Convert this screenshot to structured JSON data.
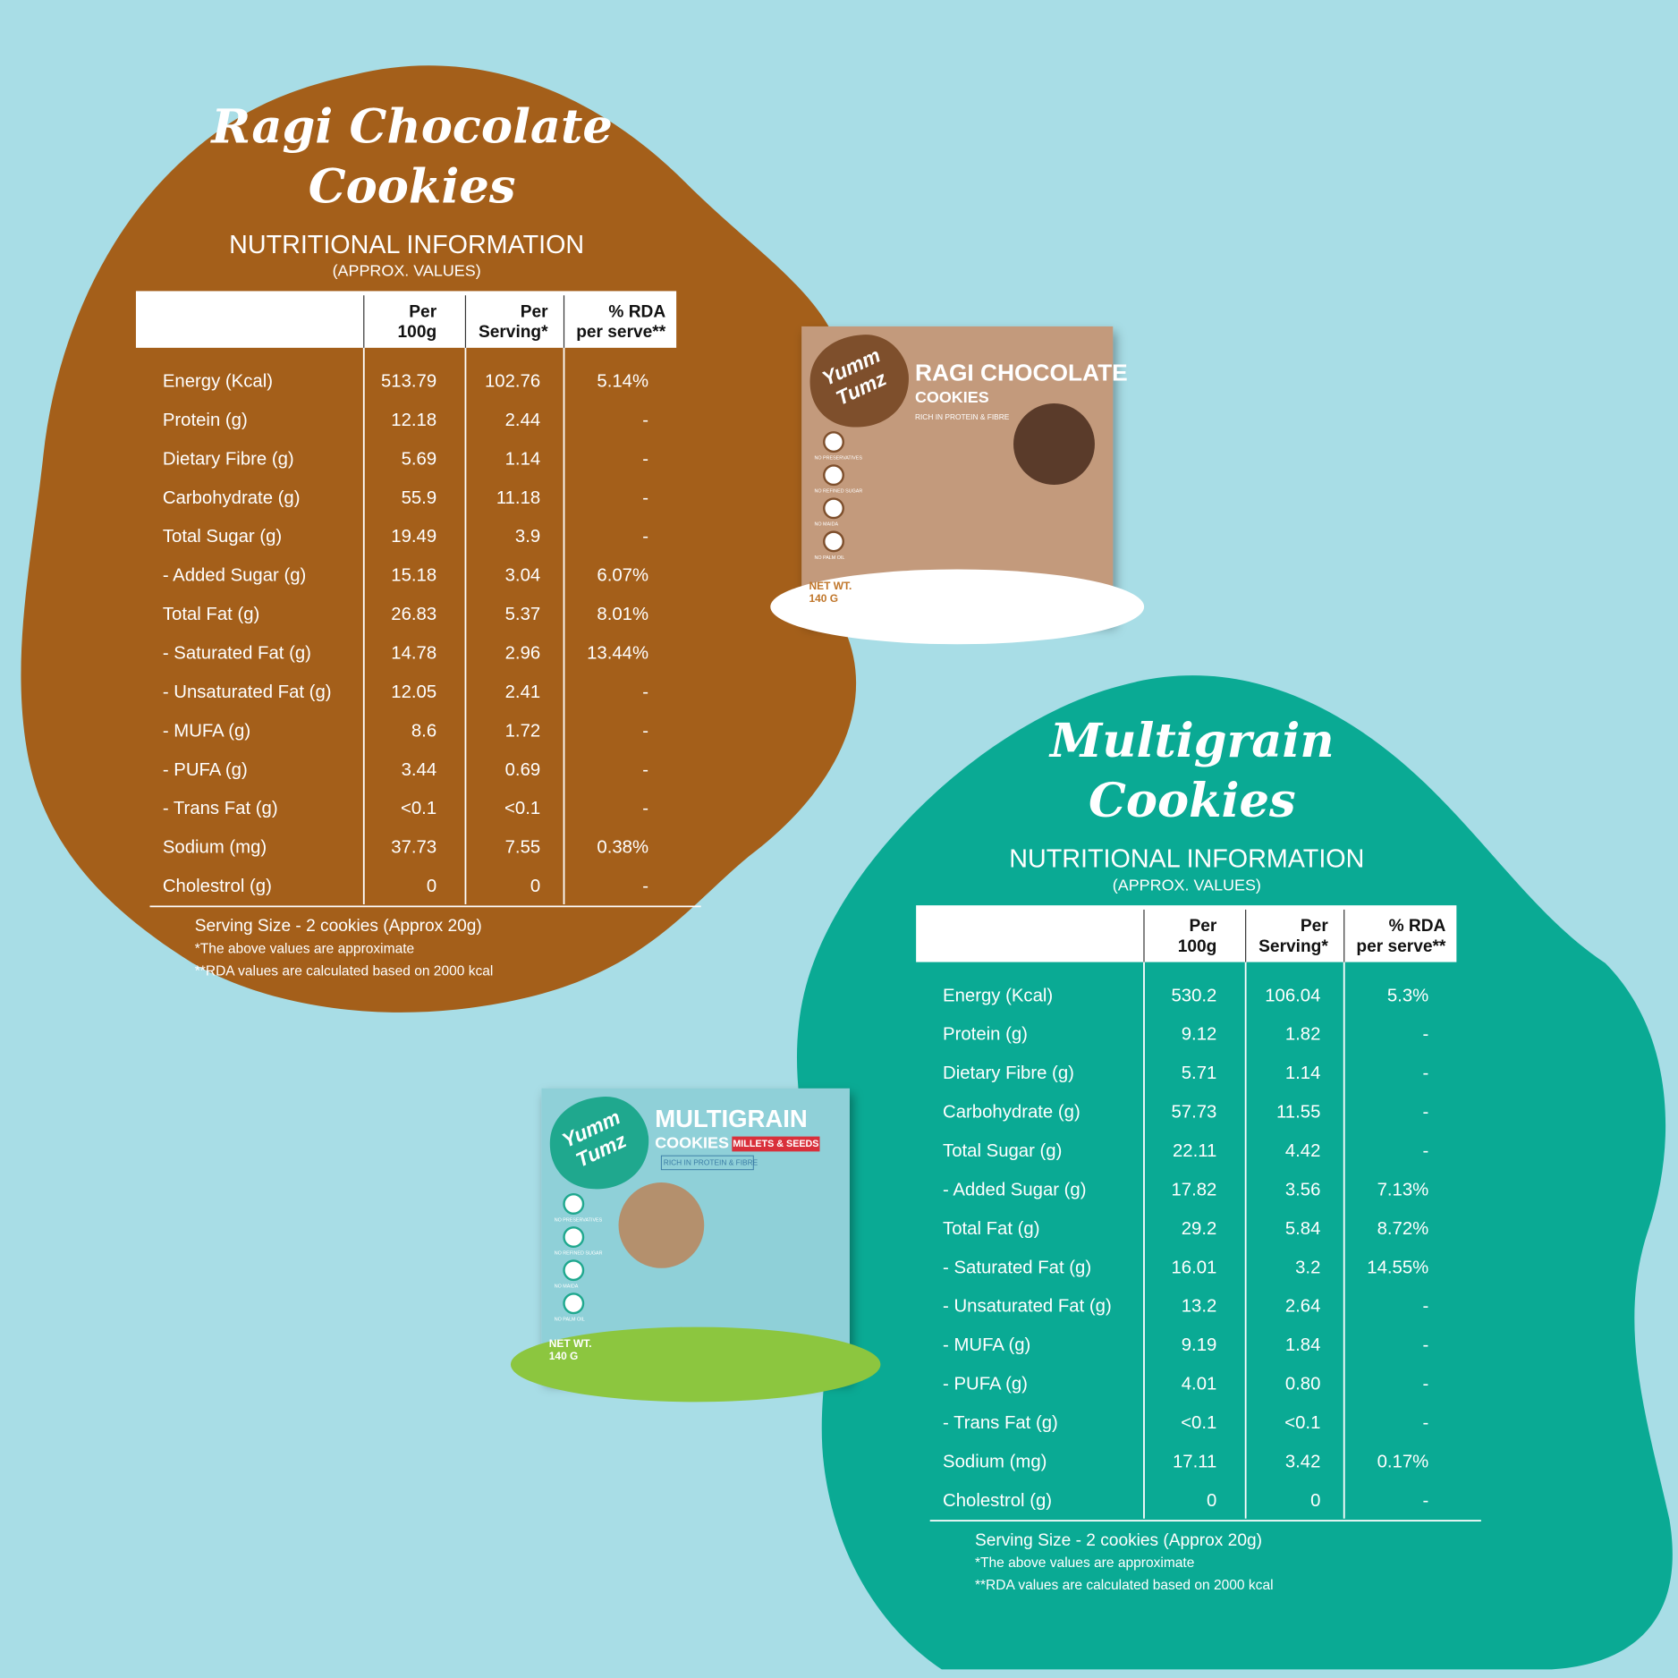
{
  "panels": [
    {
      "title": [
        "Ragi Chocolate",
        "Cookies"
      ],
      "heading": "NUTRITIONAL INFORMATION",
      "subheading": "(APPROX. VALUES)",
      "table": {
        "header": [
          [
            "Per",
            "100g"
          ],
          [
            "Per",
            "Serving*"
          ],
          [
            "% RDA",
            "per serve**"
          ]
        ],
        "rows": [
          [
            "Energy (Kcal)",
            "513.79",
            "102.76",
            "5.14%"
          ],
          [
            "Protein (g)",
            "12.18",
            "2.44",
            "-"
          ],
          [
            "Dietary Fibre (g)",
            "5.69",
            "1.14",
            "-"
          ],
          [
            "Carbohydrate (g)",
            "55.9",
            "11.18",
            "-"
          ],
          [
            "Total Sugar (g)",
            "19.49",
            "3.9",
            "-"
          ],
          [
            " - Added Sugar (g)",
            "15.18",
            "3.04",
            "6.07%"
          ],
          [
            "Total Fat (g)",
            "26.83",
            "5.37",
            "8.01%"
          ],
          [
            " - Saturated Fat (g)",
            "14.78",
            "2.96",
            "13.44%"
          ],
          [
            " - Unsaturated Fat (g)",
            "12.05",
            "2.41",
            "-"
          ],
          [
            " - MUFA (g)",
            "8.6",
            "1.72",
            "-"
          ],
          [
            " - PUFA (g)",
            "3.44",
            "0.69",
            "-"
          ],
          [
            " - Trans Fat (g)",
            "<0.1",
            "<0.1",
            "-"
          ],
          [
            "Sodium (mg)",
            "37.73",
            "7.55",
            "0.38%"
          ],
          [
            "Cholestrol (g)",
            "0",
            "0",
            "-"
          ]
        ]
      },
      "serving_size": "Serving Size - 2 cookies (Approx 20g)",
      "notes": [
        "*The above values are approximate",
        "**RDA values are calculated based on 2000 kcal"
      ]
    },
    {
      "title": [
        "Multigrain",
        "Cookies"
      ],
      "heading": "NUTRITIONAL INFORMATION",
      "subheading": "(APPROX. VALUES)",
      "table": {
        "header": [
          [
            "Per",
            "100g"
          ],
          [
            "Per",
            "Serving*"
          ],
          [
            "% RDA",
            "per serve**"
          ]
        ],
        "rows": [
          [
            "Energy (Kcal)",
            "530.2",
            "106.04",
            "5.3%"
          ],
          [
            "Protein (g)",
            "9.12",
            "1.82",
            "-"
          ],
          [
            "Dietary Fibre (g)",
            "5.71",
            "1.14",
            "-"
          ],
          [
            "Carbohydrate (g)",
            "57.73",
            "11.55",
            "-"
          ],
          [
            "Total Sugar (g)",
            "22.11",
            "4.42",
            "-"
          ],
          [
            " - Added Sugar (g)",
            "17.82",
            "3.56",
            "7.13%"
          ],
          [
            "Total Fat (g)",
            "29.2",
            "5.84",
            "8.72%"
          ],
          [
            " - Saturated Fat (g)",
            "16.01",
            "3.2",
            "14.55%"
          ],
          [
            " - Unsaturated Fat (g)",
            "13.2",
            "2.64",
            "-"
          ],
          [
            " - MUFA (g)",
            "9.19",
            "1.84",
            "-"
          ],
          [
            " - PUFA (g)",
            "4.01",
            "0.80",
            "-"
          ],
          [
            " - Trans Fat (g)",
            "<0.1",
            "<0.1",
            "-"
          ],
          [
            "Sodium (mg)",
            "17.11",
            "3.42",
            "0.17%"
          ],
          [
            "Cholestrol (g)",
            "0",
            "0",
            "-"
          ]
        ]
      },
      "serving_size": "Serving Size - 2 cookies (Approx 20g)",
      "notes": [
        "*The above values are approximate",
        "**RDA values are calculated based on 2000 kcal"
      ]
    }
  ],
  "packages": [
    {
      "brand": [
        "Yumm",
        "Tumz"
      ],
      "name": "RAGI CHOCOLATE",
      "subname": "COOKIES",
      "tagline": "RICH IN PROTEIN & FIBRE",
      "claims": [
        "NO PRESERVATIVES",
        "NO REFINED SUGAR",
        "NO MAIDA",
        "NO PALM OIL"
      ],
      "net_wt": [
        "NET WT.",
        "140 G"
      ]
    },
    {
      "brand": [
        "Yumm",
        "Tumz"
      ],
      "name": "MULTIGRAIN",
      "subname": "COOKIES",
      "badge": "MILLETS & SEEDS",
      "tagline": "RICH IN PROTEIN & FIBRE",
      "claims": [
        "NO PRESERVATIVES",
        "NO REFINED SUGAR",
        "NO MAIDA",
        "NO PALM OIL"
      ],
      "net_wt": [
        "NET WT.",
        "140 G"
      ]
    }
  ]
}
